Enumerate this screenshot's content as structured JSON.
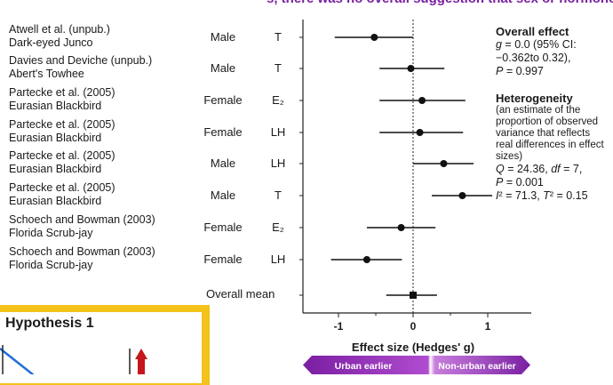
{
  "header_fragment": "s, there was no overall suggestion that sex or hormone type, explained",
  "rows": [
    {
      "study": "Atwell et al. (unpub.)",
      "species": "Dark-eyed Junco",
      "sex": "Male",
      "hormone": "T"
    },
    {
      "study": "Davies and Deviche (unpub.)",
      "species": "Abert's Towhee",
      "sex": "Male",
      "hormone": "T"
    },
    {
      "study": "Partecke et al. (2005)",
      "species": "Eurasian Blackbird",
      "sex": "Female",
      "hormone": "E₂"
    },
    {
      "study": "Partecke et al. (2005)",
      "species": "Eurasian Blackbird",
      "sex": "Female",
      "hormone": "LH"
    },
    {
      "study": "Partecke et al. (2005)",
      "species": "Eurasian Blackbird",
      "sex": "Male",
      "hormone": "LH"
    },
    {
      "study": "Partecke et al. (2005)",
      "species": "Eurasian Blackbird",
      "sex": "Male",
      "hormone": "T"
    },
    {
      "study": "Schoech and Bowman (2003)",
      "species": "Florida Scrub-jay",
      "sex": "Female",
      "hormone": "E₂"
    },
    {
      "study": "Schoech and Bowman (2003)",
      "species": "Florida Scrub-jay",
      "sex": "Female",
      "hormone": "LH"
    }
  ],
  "overall_mean_label": "Overall mean",
  "chart_data": {
    "type": "forest",
    "xlabel": "Effect size (Hedges' g)",
    "xlim": [
      -1.4,
      1.4
    ],
    "xticks": [
      -1,
      0,
      1
    ],
    "reference_line": 0,
    "points": [
      {
        "est": -0.52,
        "lo": -1.05,
        "hi": 0.0
      },
      {
        "est": -0.03,
        "lo": -0.45,
        "hi": 0.42
      },
      {
        "est": 0.12,
        "lo": -0.45,
        "hi": 0.7
      },
      {
        "est": 0.09,
        "lo": -0.45,
        "hi": 0.67
      },
      {
        "est": 0.41,
        "lo": 0.0,
        "hi": 0.81
      },
      {
        "est": 0.66,
        "lo": 0.25,
        "hi": 1.06
      },
      {
        "est": -0.16,
        "lo": -0.62,
        "hi": 0.3
      },
      {
        "est": -0.62,
        "lo": -1.1,
        "hi": -0.15
      }
    ],
    "overall": {
      "est": 0.0,
      "lo": -0.36,
      "hi": 0.32
    }
  },
  "arrows": {
    "left_label": "Urban earlier",
    "right_label": "Non-urban earlier",
    "left_color": "#7a1fa2",
    "right_color": "#e8b8f0"
  },
  "panel": {
    "overall_title": "Overall effect",
    "overall_line1": "g = 0.0 (95% CI:",
    "overall_line2": "−0.362to 0.32),",
    "overall_line3": "P = 0.997",
    "het_title": "Heterogeneity",
    "het_desc": "(an estimate of the proportion of observed variance that reflects real differences in effect sizes)",
    "het_line1": "Q = 24.36, df = 7,",
    "het_line2": "P = 0.001",
    "het_line3": "I² = 71.3, T² = 0.15"
  },
  "hypothesis": {
    "title": "Hypothesis 1",
    "accent": "#f4c21a"
  }
}
